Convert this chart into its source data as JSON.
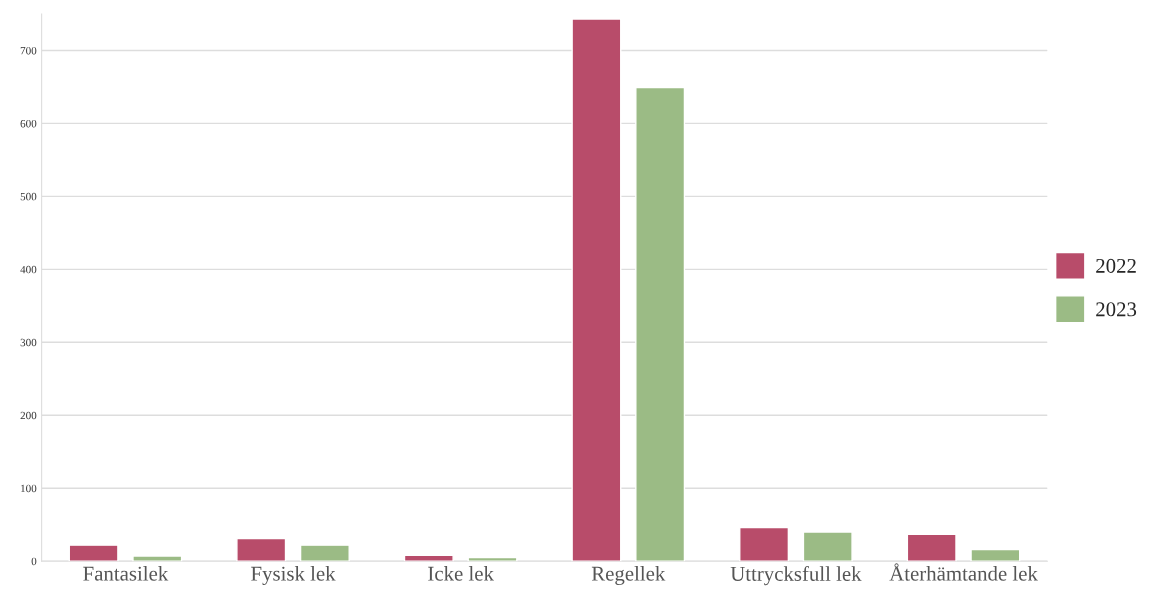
{
  "chart_data": {
    "type": "bar",
    "categories": [
      "Fantasilek",
      "Fysisk lek",
      "Icke lek",
      "Regellek",
      "Uttrycksfull lek",
      "Återhämtande lek"
    ],
    "series": [
      {
        "name": "2022",
        "color": "#b84c6a",
        "values": [
          22,
          31,
          8,
          743,
          46,
          37
        ]
      },
      {
        "name": "2023",
        "color": "#9bbb85",
        "values": [
          7,
          22,
          5,
          649,
          40,
          16
        ]
      }
    ],
    "ylim": [
      0,
      750
    ],
    "yticks": [
      0,
      100,
      200,
      300,
      400,
      500,
      600,
      700
    ],
    "grid": "y",
    "legend": "right"
  }
}
